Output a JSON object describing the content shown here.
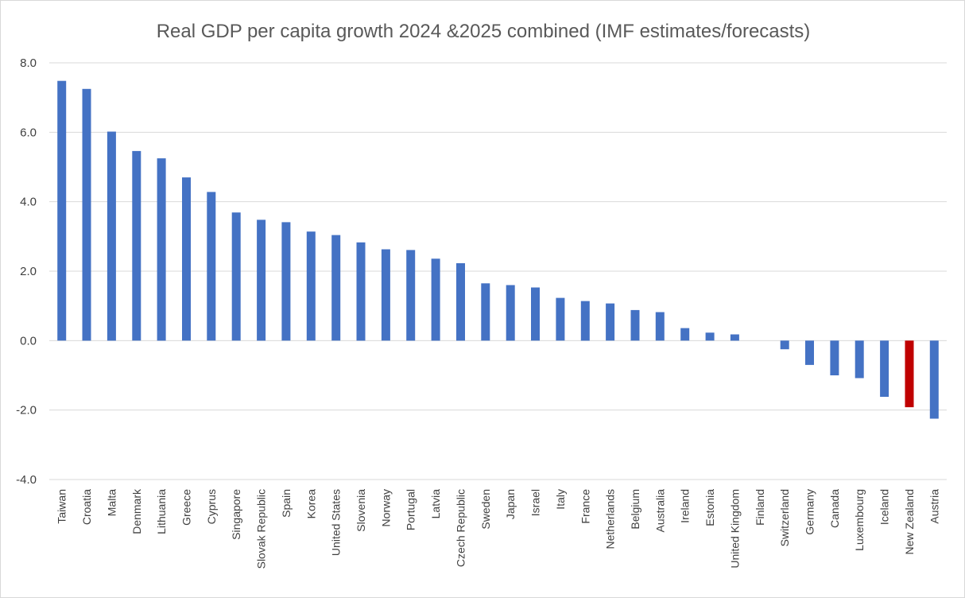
{
  "chart_data": {
    "type": "bar",
    "title": "Real GDP per capita growth 2024 &2025 combined (IMF estimates/forecasts)",
    "xlabel": "",
    "ylabel": "",
    "ylim": [
      -4.0,
      8.0
    ],
    "yticks": [
      "-4.0",
      "-2.0",
      "0.0",
      "2.0",
      "4.0",
      "6.0",
      "8.0"
    ],
    "grid": true,
    "legend": "none",
    "categories": [
      "Taiwan",
      "Croatia",
      "Malta",
      "Denmark",
      "Lithuania",
      "Greece",
      "Cyprus",
      "Singapore",
      "Slovak Republic",
      "Spain",
      "Korea",
      "United States",
      "Slovenia",
      "Norway",
      "Portugal",
      "Latvia",
      "Czech Republic",
      "Sweden",
      "Japan",
      "Israel",
      "Italy",
      "France",
      "Netherlands",
      "Belgium",
      "Australia",
      "Ireland",
      "Estonia",
      "United Kingdom",
      "Finland",
      "Switzerland",
      "Germany",
      "Canada",
      "Luxembourg",
      "Iceland",
      "New Zealand",
      "Austria"
    ],
    "values": [
      7.48,
      7.25,
      6.02,
      5.46,
      5.25,
      4.7,
      4.28,
      3.69,
      3.48,
      3.41,
      3.14,
      3.04,
      2.83,
      2.63,
      2.61,
      2.36,
      2.23,
      1.65,
      1.6,
      1.53,
      1.23,
      1.14,
      1.07,
      0.88,
      0.82,
      0.36,
      0.23,
      0.18,
      0.0,
      -0.25,
      -0.7,
      -1.0,
      -1.08,
      -1.62,
      -1.92,
      -2.25
    ],
    "colors": {
      "default": "#4472c4",
      "highlight": "#c00000"
    },
    "highlight_category": "New Zealand"
  }
}
